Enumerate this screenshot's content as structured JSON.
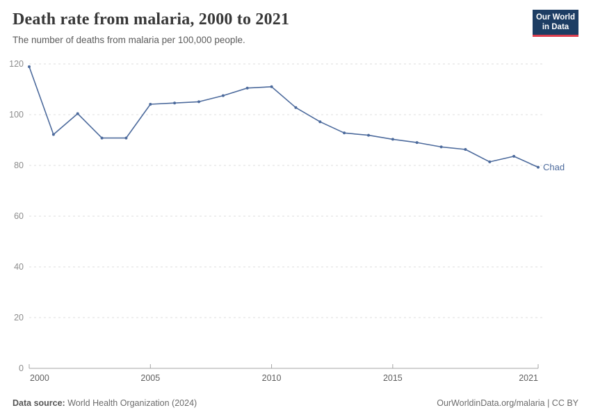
{
  "header": {
    "title": "Death rate from malaria, 2000 to 2021",
    "subtitle": "The number of deaths from malaria per 100,000 people."
  },
  "logo": {
    "line1": "Our World",
    "line2": "in Data",
    "bg_color": "#1d3d63",
    "accent_color": "#dc3e4e",
    "text_color": "#ffffff"
  },
  "chart_data": {
    "type": "line",
    "title": "Death rate from malaria, 2000 to 2021",
    "xlabel": "",
    "ylabel": "",
    "x": [
      2000,
      2001,
      2002,
      2003,
      2004,
      2005,
      2006,
      2007,
      2008,
      2009,
      2010,
      2011,
      2012,
      2013,
      2014,
      2015,
      2016,
      2017,
      2018,
      2019,
      2020,
      2021
    ],
    "series": [
      {
        "name": "Chad",
        "color": "#4C6A9C",
        "values": [
          118.9,
          92.2,
          100.4,
          90.8,
          90.8,
          104.1,
          104.6,
          105.1,
          107.5,
          110.5,
          111.0,
          102.8,
          97.2,
          92.8,
          91.9,
          90.3,
          89.0,
          87.3,
          86.3,
          81.4,
          83.6,
          79.3
        ]
      }
    ],
    "xlim": [
      2000,
      2021
    ],
    "ylim": [
      0,
      120
    ],
    "xticks": [
      2000,
      2005,
      2010,
      2015,
      2021
    ],
    "yticks": [
      0,
      20,
      40,
      60,
      80,
      100,
      120
    ],
    "grid": "horizontal-dashed",
    "legend": "end-of-line-label"
  },
  "footer": {
    "datasource_label": "Data source:",
    "datasource_value": " World Health Organization (2024)",
    "credit": "OurWorldinData.org/malaria | CC BY"
  }
}
